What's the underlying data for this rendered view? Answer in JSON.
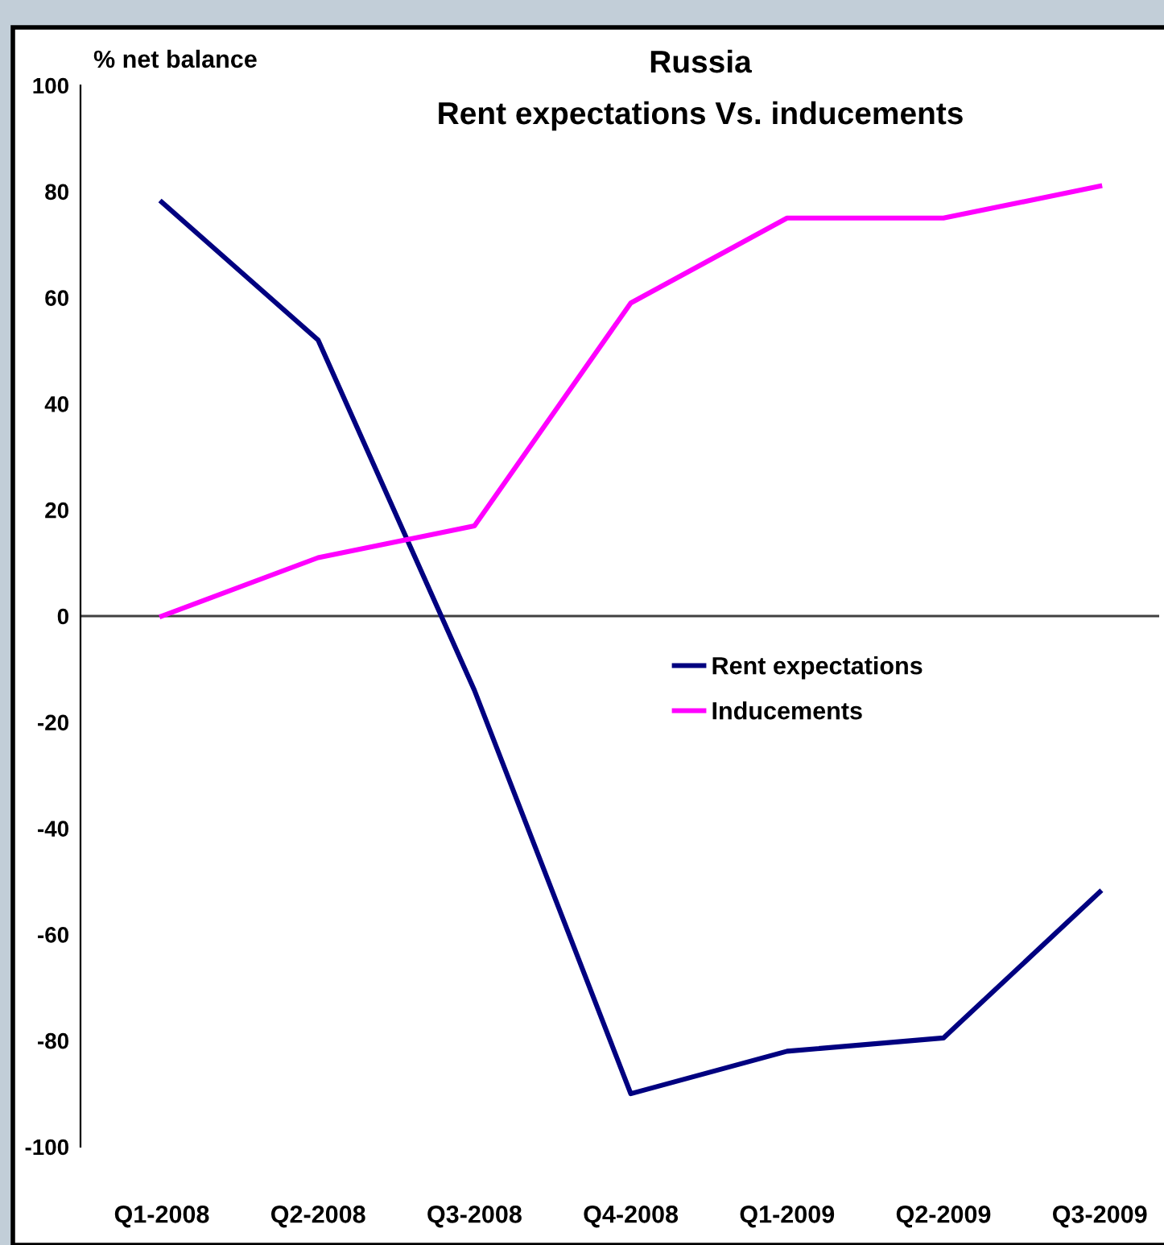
{
  "chart_data": {
    "type": "line",
    "title": "Russia",
    "subtitle": "Rent expectations Vs. inducements",
    "ylabel": "% net balance",
    "categories": [
      "Q1-2008",
      "Q2-2008",
      "Q3-2008",
      "Q4-2008",
      "Q1-2009",
      "Q2-2009",
      "Q3-2009"
    ],
    "series": [
      {
        "name": "Rent expectations",
        "color": "#000080",
        "values": [
          78,
          52,
          -14,
          -90,
          -82,
          -79.5,
          -52
        ]
      },
      {
        "name": "Inducements",
        "color": "#ff00ff",
        "values": [
          0,
          11,
          17,
          59,
          75,
          75,
          81
        ]
      }
    ],
    "ylim": [
      -100,
      100
    ],
    "yticks": [
      -100,
      -80,
      -60,
      -40,
      -20,
      0,
      20,
      40,
      60,
      80,
      100
    ],
    "ref_lines": [
      {
        "axis": "y",
        "value": 0,
        "color": "#404040"
      }
    ],
    "grid": false,
    "legend": "center right",
    "marker": "none",
    "line_style": "solid"
  }
}
